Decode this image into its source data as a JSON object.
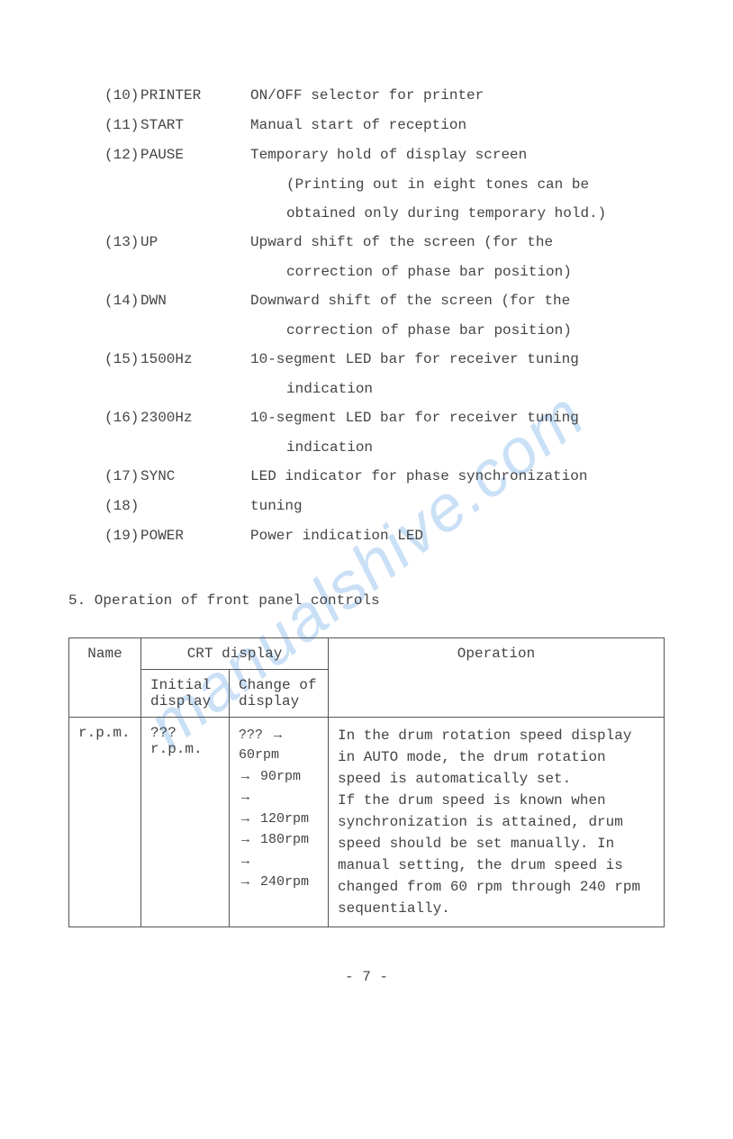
{
  "watermark": "manualshive.com",
  "items": [
    {
      "num": "(10)",
      "label": "PRINTER",
      "desc": [
        "ON/OFF selector for printer"
      ]
    },
    {
      "num": "(11)",
      "label": "START",
      "desc": [
        "Manual start of reception"
      ]
    },
    {
      "num": "(12)",
      "label": "PAUSE",
      "desc": [
        "Temporary hold of display screen",
        "(Printing out in eight tones can be",
        "obtained only during temporary hold.)"
      ]
    },
    {
      "num": "(13)",
      "label": "UP",
      "desc": [
        "Upward shift of the screen (for the",
        "correction of phase bar position)"
      ]
    },
    {
      "num": "(14)",
      "label": "DWN",
      "desc": [
        "Downward shift of the screen (for the",
        "correction of phase bar position)"
      ]
    },
    {
      "num": "(15)",
      "label": "1500Hz",
      "desc": [
        "10-segment LED bar for receiver tuning",
        "indication"
      ]
    },
    {
      "num": "(16)",
      "label": "2300Hz",
      "desc": [
        "10-segment LED bar for receiver tuning",
        "indication"
      ]
    },
    {
      "num": "(17)",
      "label": "SYNC",
      "desc": [
        "LED indicator for phase synchronization"
      ]
    },
    {
      "num": "(18)",
      "label": "",
      "desc": [
        "tuning"
      ]
    },
    {
      "num": "(19)",
      "label": "POWER",
      "desc": [
        "Power indication LED"
      ]
    }
  ],
  "section_title": "5.  Operation of front panel controls",
  "table": {
    "header_crt": "CRT display",
    "header_name": "Name",
    "header_initial": "Initial display",
    "header_change": "Change of display",
    "header_operation": "Operation",
    "row": {
      "name": "r.p.m.",
      "initial": "???r.p.m.",
      "change_lines": [
        "??? → 60rpm",
        "→ 90rpm →",
        "→ 120rpm",
        "→ 180rpm →",
        "→ 240rpm"
      ],
      "operation": "In the drum rotation speed display in AUTO mode, the drum rotation speed is automatically set.\nIf the drum speed is known when synchronization is attained, drum speed should be set manually.  In manual setting, the drum speed is changed from 60 rpm through 240 rpm sequentially."
    }
  },
  "page_number": "- 7 -"
}
